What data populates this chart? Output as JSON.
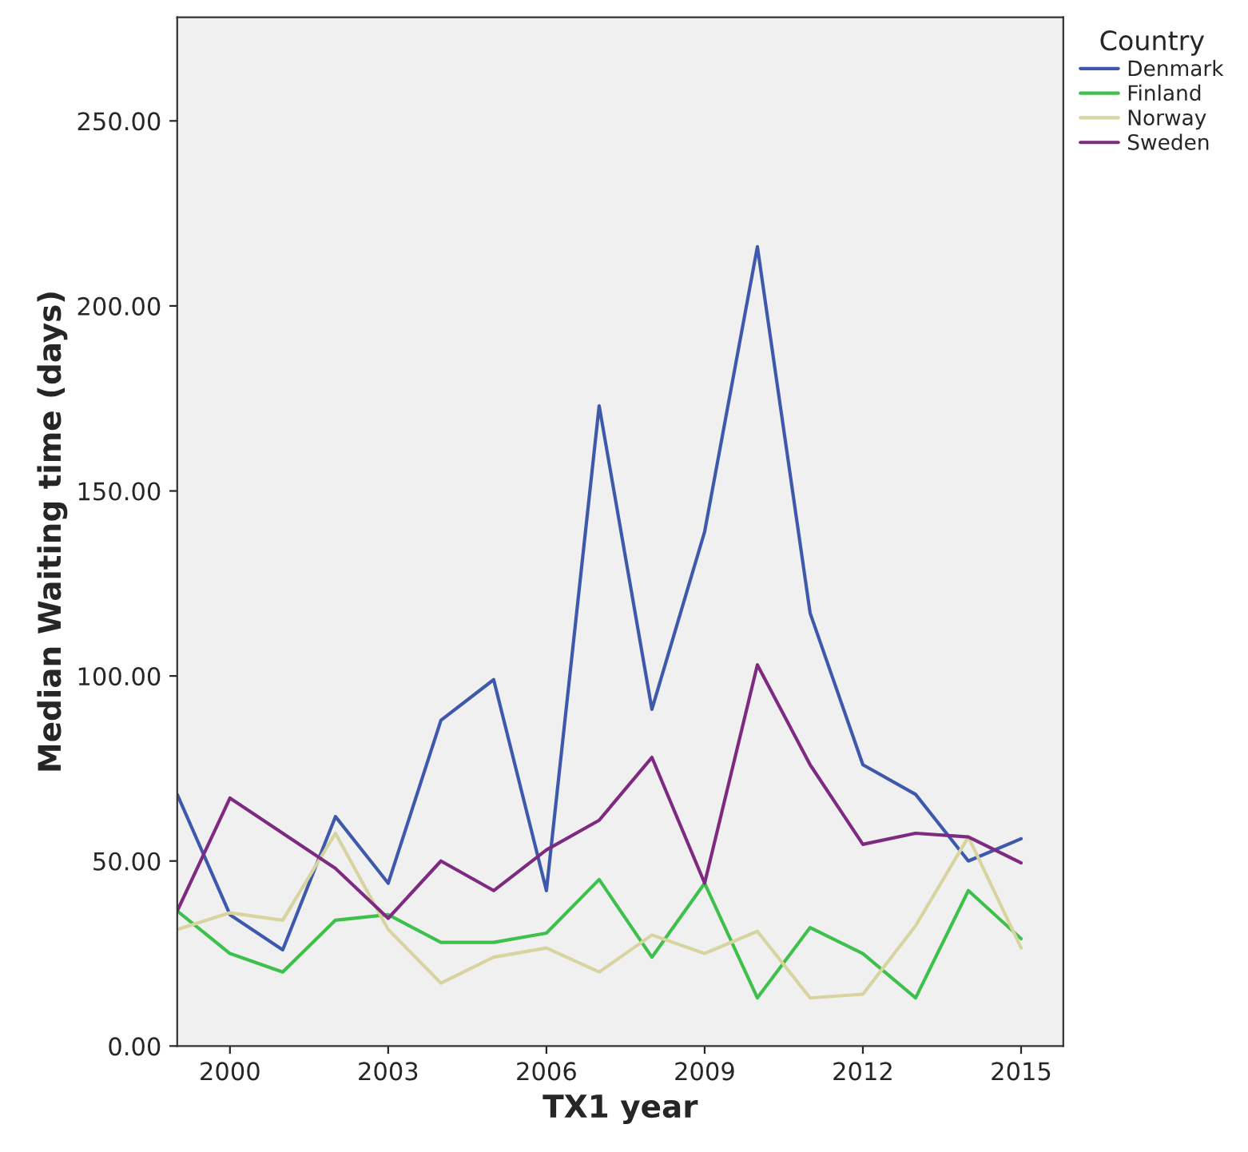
{
  "chart_data": {
    "type": "line",
    "xlabel": "TX1 year",
    "ylabel": "Median Waiting time (days)",
    "legend_title": "Country",
    "legend": "top right",
    "grid": false,
    "x": [
      1999,
      2000,
      2001,
      2002,
      2003,
      2004,
      2005,
      2006,
      2007,
      2008,
      2009,
      2010,
      2011,
      2012,
      2013,
      2014,
      2015
    ],
    "series": [
      {
        "name": "Denmark",
        "color": "#3e58ac",
        "values": [
          68,
          35.5,
          26,
          62,
          44,
          88,
          99,
          42,
          173,
          91,
          139,
          216,
          117,
          76,
          68,
          50,
          56
        ]
      },
      {
        "name": "Finland",
        "color": "#3ec04c",
        "values": [
          36.5,
          25,
          20,
          34,
          35.5,
          28,
          28,
          30.5,
          45,
          24,
          44,
          13,
          32,
          25,
          13,
          42,
          29
        ]
      },
      {
        "name": "Norway",
        "color": "#d8d4a0",
        "values": [
          31.5,
          36,
          34,
          57.5,
          31.5,
          17,
          24,
          26.5,
          20,
          30,
          25,
          31,
          13,
          14,
          32.5,
          56.5,
          26.5
        ]
      },
      {
        "name": "Sweden",
        "color": "#7d2a80",
        "values": [
          36.5,
          67,
          57.5,
          48,
          34.5,
          50,
          42,
          53,
          61,
          78,
          44,
          103,
          76,
          54.5,
          57.5,
          56.5,
          49.5
        ]
      }
    ],
    "xlim": [
      1999,
      2015.8
    ],
    "xticks": [
      2000,
      2003,
      2006,
      2009,
      2012,
      2015
    ],
    "ylim": [
      0,
      278
    ],
    "yticks": [
      {
        "value": 0,
        "label": "0.00"
      },
      {
        "value": 50,
        "label": "50.00"
      },
      {
        "value": 100,
        "label": "100.00"
      },
      {
        "value": 150,
        "label": "150.00"
      },
      {
        "value": 200,
        "label": "200.00"
      },
      {
        "value": 250,
        "label": "250.00"
      }
    ],
    "line_style": "solid",
    "marker": "none"
  }
}
